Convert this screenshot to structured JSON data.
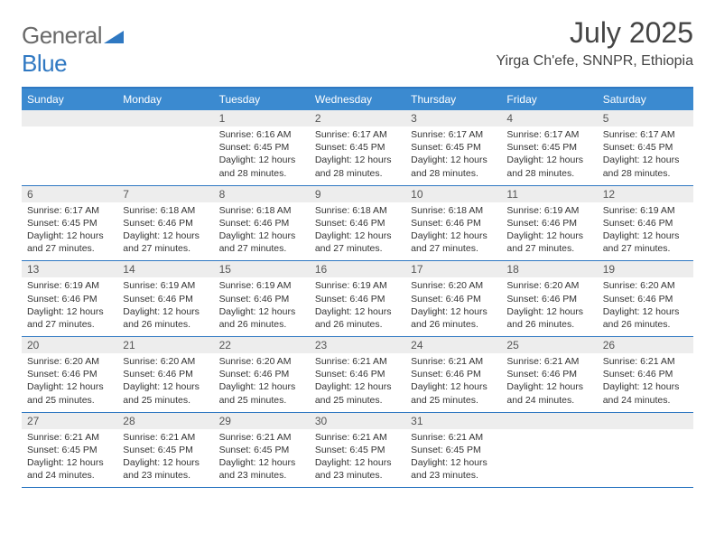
{
  "logo": {
    "word1": "General",
    "word2": "Blue"
  },
  "title": "July 2025",
  "subtitle": "Yirga Ch'efe, SNNPR, Ethiopia",
  "colors": {
    "header_bg": "#3b8ad0",
    "border": "#2f78c2",
    "daynum_bg": "#ededed",
    "text": "#333333",
    "logo_gray": "#6a6a6a",
    "logo_blue": "#2f78c2"
  },
  "day_names": [
    "Sunday",
    "Monday",
    "Tuesday",
    "Wednesday",
    "Thursday",
    "Friday",
    "Saturday"
  ],
  "weeks": [
    [
      {
        "n": "",
        "lines": []
      },
      {
        "n": "",
        "lines": []
      },
      {
        "n": "1",
        "lines": [
          "Sunrise: 6:16 AM",
          "Sunset: 6:45 PM",
          "Daylight: 12 hours and 28 minutes."
        ]
      },
      {
        "n": "2",
        "lines": [
          "Sunrise: 6:17 AM",
          "Sunset: 6:45 PM",
          "Daylight: 12 hours and 28 minutes."
        ]
      },
      {
        "n": "3",
        "lines": [
          "Sunrise: 6:17 AM",
          "Sunset: 6:45 PM",
          "Daylight: 12 hours and 28 minutes."
        ]
      },
      {
        "n": "4",
        "lines": [
          "Sunrise: 6:17 AM",
          "Sunset: 6:45 PM",
          "Daylight: 12 hours and 28 minutes."
        ]
      },
      {
        "n": "5",
        "lines": [
          "Sunrise: 6:17 AM",
          "Sunset: 6:45 PM",
          "Daylight: 12 hours and 28 minutes."
        ]
      }
    ],
    [
      {
        "n": "6",
        "lines": [
          "Sunrise: 6:17 AM",
          "Sunset: 6:45 PM",
          "Daylight: 12 hours and 27 minutes."
        ]
      },
      {
        "n": "7",
        "lines": [
          "Sunrise: 6:18 AM",
          "Sunset: 6:46 PM",
          "Daylight: 12 hours and 27 minutes."
        ]
      },
      {
        "n": "8",
        "lines": [
          "Sunrise: 6:18 AM",
          "Sunset: 6:46 PM",
          "Daylight: 12 hours and 27 minutes."
        ]
      },
      {
        "n": "9",
        "lines": [
          "Sunrise: 6:18 AM",
          "Sunset: 6:46 PM",
          "Daylight: 12 hours and 27 minutes."
        ]
      },
      {
        "n": "10",
        "lines": [
          "Sunrise: 6:18 AM",
          "Sunset: 6:46 PM",
          "Daylight: 12 hours and 27 minutes."
        ]
      },
      {
        "n": "11",
        "lines": [
          "Sunrise: 6:19 AM",
          "Sunset: 6:46 PM",
          "Daylight: 12 hours and 27 minutes."
        ]
      },
      {
        "n": "12",
        "lines": [
          "Sunrise: 6:19 AM",
          "Sunset: 6:46 PM",
          "Daylight: 12 hours and 27 minutes."
        ]
      }
    ],
    [
      {
        "n": "13",
        "lines": [
          "Sunrise: 6:19 AM",
          "Sunset: 6:46 PM",
          "Daylight: 12 hours and 27 minutes."
        ]
      },
      {
        "n": "14",
        "lines": [
          "Sunrise: 6:19 AM",
          "Sunset: 6:46 PM",
          "Daylight: 12 hours and 26 minutes."
        ]
      },
      {
        "n": "15",
        "lines": [
          "Sunrise: 6:19 AM",
          "Sunset: 6:46 PM",
          "Daylight: 12 hours and 26 minutes."
        ]
      },
      {
        "n": "16",
        "lines": [
          "Sunrise: 6:19 AM",
          "Sunset: 6:46 PM",
          "Daylight: 12 hours and 26 minutes."
        ]
      },
      {
        "n": "17",
        "lines": [
          "Sunrise: 6:20 AM",
          "Sunset: 6:46 PM",
          "Daylight: 12 hours and 26 minutes."
        ]
      },
      {
        "n": "18",
        "lines": [
          "Sunrise: 6:20 AM",
          "Sunset: 6:46 PM",
          "Daylight: 12 hours and 26 minutes."
        ]
      },
      {
        "n": "19",
        "lines": [
          "Sunrise: 6:20 AM",
          "Sunset: 6:46 PM",
          "Daylight: 12 hours and 26 minutes."
        ]
      }
    ],
    [
      {
        "n": "20",
        "lines": [
          "Sunrise: 6:20 AM",
          "Sunset: 6:46 PM",
          "Daylight: 12 hours and 25 minutes."
        ]
      },
      {
        "n": "21",
        "lines": [
          "Sunrise: 6:20 AM",
          "Sunset: 6:46 PM",
          "Daylight: 12 hours and 25 minutes."
        ]
      },
      {
        "n": "22",
        "lines": [
          "Sunrise: 6:20 AM",
          "Sunset: 6:46 PM",
          "Daylight: 12 hours and 25 minutes."
        ]
      },
      {
        "n": "23",
        "lines": [
          "Sunrise: 6:21 AM",
          "Sunset: 6:46 PM",
          "Daylight: 12 hours and 25 minutes."
        ]
      },
      {
        "n": "24",
        "lines": [
          "Sunrise: 6:21 AM",
          "Sunset: 6:46 PM",
          "Daylight: 12 hours and 25 minutes."
        ]
      },
      {
        "n": "25",
        "lines": [
          "Sunrise: 6:21 AM",
          "Sunset: 6:46 PM",
          "Daylight: 12 hours and 24 minutes."
        ]
      },
      {
        "n": "26",
        "lines": [
          "Sunrise: 6:21 AM",
          "Sunset: 6:46 PM",
          "Daylight: 12 hours and 24 minutes."
        ]
      }
    ],
    [
      {
        "n": "27",
        "lines": [
          "Sunrise: 6:21 AM",
          "Sunset: 6:45 PM",
          "Daylight: 12 hours and 24 minutes."
        ]
      },
      {
        "n": "28",
        "lines": [
          "Sunrise: 6:21 AM",
          "Sunset: 6:45 PM",
          "Daylight: 12 hours and 23 minutes."
        ]
      },
      {
        "n": "29",
        "lines": [
          "Sunrise: 6:21 AM",
          "Sunset: 6:45 PM",
          "Daylight: 12 hours and 23 minutes."
        ]
      },
      {
        "n": "30",
        "lines": [
          "Sunrise: 6:21 AM",
          "Sunset: 6:45 PM",
          "Daylight: 12 hours and 23 minutes."
        ]
      },
      {
        "n": "31",
        "lines": [
          "Sunrise: 6:21 AM",
          "Sunset: 6:45 PM",
          "Daylight: 12 hours and 23 minutes."
        ]
      },
      {
        "n": "",
        "lines": []
      },
      {
        "n": "",
        "lines": []
      }
    ]
  ]
}
